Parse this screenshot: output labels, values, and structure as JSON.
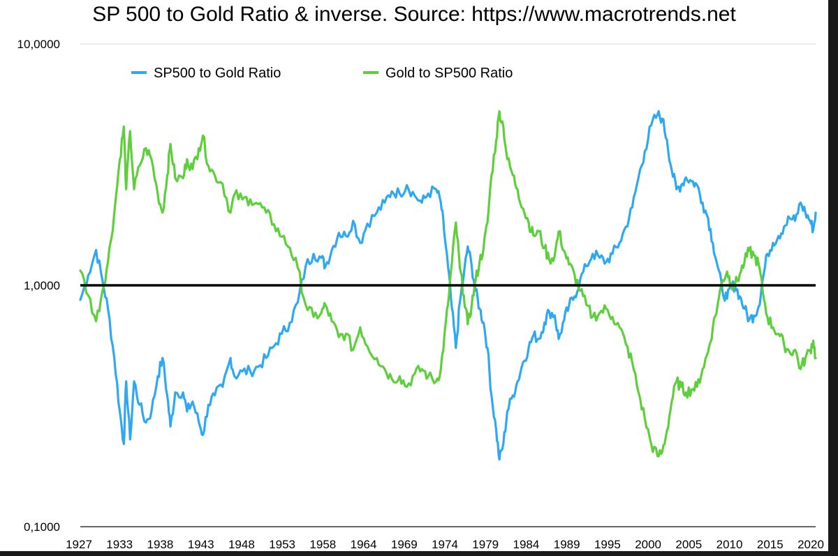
{
  "chart_data": {
    "type": "line",
    "title": "SP 500 to Gold Ratio & inverse. Source: https://www.macrotrends.net",
    "xlabel": "",
    "ylabel": "",
    "y_scale": "log",
    "ylim": [
      0.1,
      10
    ],
    "xlim": [
      1927,
      2020
    ],
    "y_ticks": [
      {
        "value": 10,
        "label": "10,0000"
      },
      {
        "value": 1,
        "label": "1,0000"
      },
      {
        "value": 0.1,
        "label": "0,1000"
      }
    ],
    "x_ticks": [
      "1927",
      "1933",
      "1938",
      "1943",
      "1948",
      "1953",
      "1958",
      "1964",
      "1969",
      "1974",
      "1979",
      "1984",
      "1989",
      "1995",
      "2000",
      "2005",
      "2010",
      "2015",
      "2020"
    ],
    "grid": "horizontal",
    "legend_position": "top",
    "reference_line": {
      "value": 1,
      "color": "#000000"
    },
    "series": [
      {
        "name": "SP500 to Gold Ratio",
        "color": "#2ea8f0",
        "points": [
          [
            1927.0,
            0.87
          ],
          [
            1928.0,
            1.1
          ],
          [
            1929.0,
            1.4
          ],
          [
            1929.8,
            1.05
          ],
          [
            1930.5,
            0.8
          ],
          [
            1931.3,
            0.5
          ],
          [
            1932.0,
            0.3
          ],
          [
            1932.5,
            0.22
          ],
          [
            1932.8,
            0.4
          ],
          [
            1933.3,
            0.23
          ],
          [
            1933.8,
            0.4
          ],
          [
            1934.5,
            0.32
          ],
          [
            1935.3,
            0.27
          ],
          [
            1936.0,
            0.3
          ],
          [
            1936.8,
            0.42
          ],
          [
            1937.4,
            0.5
          ],
          [
            1938.0,
            0.35
          ],
          [
            1938.4,
            0.26
          ],
          [
            1939.0,
            0.36
          ],
          [
            1940.0,
            0.36
          ],
          [
            1940.5,
            0.3
          ],
          [
            1941.2,
            0.33
          ],
          [
            1942.0,
            0.27
          ],
          [
            1942.5,
            0.24
          ],
          [
            1943.2,
            0.32
          ],
          [
            1944.0,
            0.35
          ],
          [
            1945.0,
            0.38
          ],
          [
            1946.0,
            0.5
          ],
          [
            1946.5,
            0.42
          ],
          [
            1947.5,
            0.44
          ],
          [
            1948.5,
            0.44
          ],
          [
            1949.5,
            0.46
          ],
          [
            1950.5,
            0.5
          ],
          [
            1951.5,
            0.56
          ],
          [
            1952.5,
            0.63
          ],
          [
            1953.5,
            0.7
          ],
          [
            1954.5,
            0.85
          ],
          [
            1955.5,
            1.2
          ],
          [
            1956.5,
            1.35
          ],
          [
            1957.5,
            1.3
          ],
          [
            1958.0,
            1.2
          ],
          [
            1958.8,
            1.4
          ],
          [
            1959.7,
            1.65
          ],
          [
            1960.6,
            1.6
          ],
          [
            1961.5,
            1.85
          ],
          [
            1962.4,
            1.5
          ],
          [
            1963.3,
            1.8
          ],
          [
            1964.5,
            2.0
          ],
          [
            1965.5,
            2.2
          ],
          [
            1966.4,
            2.45
          ],
          [
            1967.4,
            2.4
          ],
          [
            1968.3,
            2.6
          ],
          [
            1969.3,
            2.35
          ],
          [
            1970.2,
            2.2
          ],
          [
            1971.0,
            2.4
          ],
          [
            1972.0,
            2.5
          ],
          [
            1972.6,
            2.2
          ],
          [
            1973.0,
            1.7
          ],
          [
            1973.5,
            1.2
          ],
          [
            1974.0,
            0.8
          ],
          [
            1974.5,
            0.55
          ],
          [
            1975.0,
            0.85
          ],
          [
            1975.5,
            1.1
          ],
          [
            1976.0,
            1.45
          ],
          [
            1976.5,
            1.2
          ],
          [
            1977.0,
            0.95
          ],
          [
            1977.5,
            0.8
          ],
          [
            1978.0,
            0.7
          ],
          [
            1978.5,
            0.55
          ],
          [
            1979.0,
            0.35
          ],
          [
            1979.6,
            0.25
          ],
          [
            1980.0,
            0.19
          ],
          [
            1980.5,
            0.22
          ],
          [
            1981.0,
            0.3
          ],
          [
            1981.7,
            0.35
          ],
          [
            1982.3,
            0.4
          ],
          [
            1983.0,
            0.48
          ],
          [
            1983.7,
            0.55
          ],
          [
            1984.3,
            0.62
          ],
          [
            1985.0,
            0.6
          ],
          [
            1985.7,
            0.7
          ],
          [
            1986.3,
            0.78
          ],
          [
            1987.0,
            0.75
          ],
          [
            1987.5,
            0.6
          ],
          [
            1988.2,
            0.72
          ],
          [
            1988.8,
            0.82
          ],
          [
            1989.5,
            0.9
          ],
          [
            1990.2,
            1.05
          ],
          [
            1991.0,
            1.2
          ],
          [
            1991.8,
            1.35
          ],
          [
            1992.7,
            1.3
          ],
          [
            1993.5,
            1.25
          ],
          [
            1994.3,
            1.35
          ],
          [
            1995.2,
            1.5
          ],
          [
            1996.0,
            1.75
          ],
          [
            1996.8,
            2.1
          ],
          [
            1997.6,
            2.8
          ],
          [
            1998.4,
            3.6
          ],
          [
            1999.2,
            4.6
          ],
          [
            2000.0,
            5.1
          ],
          [
            2000.6,
            4.9
          ],
          [
            2001.2,
            4.0
          ],
          [
            2001.8,
            3.0
          ],
          [
            2002.4,
            2.5
          ],
          [
            2003.0,
            2.6
          ],
          [
            2003.6,
            2.8
          ],
          [
            2004.3,
            2.7
          ],
          [
            2005.0,
            2.6
          ],
          [
            2005.7,
            2.2
          ],
          [
            2006.4,
            1.9
          ],
          [
            2007.0,
            1.5
          ],
          [
            2007.6,
            1.2
          ],
          [
            2008.2,
            0.95
          ],
          [
            2008.8,
            0.88
          ],
          [
            2009.3,
            0.98
          ],
          [
            2009.8,
            1.0
          ],
          [
            2010.4,
            0.9
          ],
          [
            2011.0,
            0.8
          ],
          [
            2011.6,
            0.72
          ],
          [
            2012.2,
            0.75
          ],
          [
            2012.8,
            0.82
          ],
          [
            2013.3,
            1.05
          ],
          [
            2013.9,
            1.35
          ],
          [
            2014.6,
            1.5
          ],
          [
            2015.3,
            1.6
          ],
          [
            2016.0,
            1.75
          ],
          [
            2016.7,
            1.9
          ],
          [
            2017.4,
            1.85
          ],
          [
            2018.1,
            2.2
          ],
          [
            2018.7,
            2.0
          ],
          [
            2019.3,
            1.85
          ],
          [
            2019.7,
            1.7
          ],
          [
            2020.0,
            2.0
          ]
        ]
      },
      {
        "name": "Gold to SP500 Ratio",
        "color": "#5ccf3a",
        "points": [
          [
            1927.0,
            1.15
          ],
          [
            1928.0,
            0.91
          ],
          [
            1929.0,
            0.71
          ],
          [
            1929.8,
            0.95
          ],
          [
            1930.5,
            1.25
          ],
          [
            1931.3,
            2.0
          ],
          [
            1932.0,
            3.33
          ],
          [
            1932.5,
            4.55
          ],
          [
            1932.8,
            2.5
          ],
          [
            1933.3,
            4.35
          ],
          [
            1933.8,
            2.5
          ],
          [
            1934.5,
            3.13
          ],
          [
            1935.3,
            3.7
          ],
          [
            1936.0,
            3.33
          ],
          [
            1936.8,
            2.38
          ],
          [
            1937.4,
            2.0
          ],
          [
            1938.0,
            2.86
          ],
          [
            1938.4,
            3.85
          ],
          [
            1939.0,
            2.78
          ],
          [
            1940.0,
            2.78
          ],
          [
            1940.5,
            3.33
          ],
          [
            1941.2,
            3.03
          ],
          [
            1942.0,
            3.7
          ],
          [
            1942.5,
            4.17
          ],
          [
            1943.2,
            3.13
          ],
          [
            1944.0,
            2.86
          ],
          [
            1945.0,
            2.63
          ],
          [
            1946.0,
            2.0
          ],
          [
            1946.5,
            2.38
          ],
          [
            1947.5,
            2.27
          ],
          [
            1948.5,
            2.27
          ],
          [
            1949.5,
            2.17
          ],
          [
            1950.5,
            2.0
          ],
          [
            1951.5,
            1.79
          ],
          [
            1952.5,
            1.59
          ],
          [
            1953.5,
            1.43
          ],
          [
            1954.5,
            1.18
          ],
          [
            1955.5,
            0.83
          ],
          [
            1956.5,
            0.74
          ],
          [
            1957.5,
            0.77
          ],
          [
            1958.0,
            0.83
          ],
          [
            1958.8,
            0.71
          ],
          [
            1959.7,
            0.61
          ],
          [
            1960.6,
            0.63
          ],
          [
            1961.5,
            0.54
          ],
          [
            1962.4,
            0.67
          ],
          [
            1963.3,
            0.56
          ],
          [
            1964.5,
            0.5
          ],
          [
            1965.5,
            0.45
          ],
          [
            1966.4,
            0.41
          ],
          [
            1967.4,
            0.42
          ],
          [
            1968.3,
            0.38
          ],
          [
            1969.3,
            0.43
          ],
          [
            1970.2,
            0.45
          ],
          [
            1971.0,
            0.42
          ],
          [
            1972.0,
            0.4
          ],
          [
            1972.6,
            0.45
          ],
          [
            1973.0,
            0.59
          ],
          [
            1973.5,
            0.83
          ],
          [
            1974.0,
            1.25
          ],
          [
            1974.5,
            1.82
          ],
          [
            1975.0,
            1.18
          ],
          [
            1975.5,
            0.91
          ],
          [
            1976.0,
            0.69
          ],
          [
            1976.5,
            0.83
          ],
          [
            1977.0,
            1.05
          ],
          [
            1977.5,
            1.25
          ],
          [
            1978.0,
            1.43
          ],
          [
            1978.5,
            1.82
          ],
          [
            1979.0,
            2.86
          ],
          [
            1979.6,
            4.0
          ],
          [
            1980.0,
            5.26
          ],
          [
            1980.5,
            4.55
          ],
          [
            1981.0,
            3.33
          ],
          [
            1981.7,
            2.86
          ],
          [
            1982.3,
            2.5
          ],
          [
            1983.0,
            2.08
          ],
          [
            1983.7,
            1.82
          ],
          [
            1984.3,
            1.61
          ],
          [
            1985.0,
            1.67
          ],
          [
            1985.7,
            1.43
          ],
          [
            1986.3,
            1.28
          ],
          [
            1987.0,
            1.33
          ],
          [
            1987.5,
            1.67
          ],
          [
            1988.2,
            1.39
          ],
          [
            1988.8,
            1.22
          ],
          [
            1989.5,
            1.11
          ],
          [
            1990.2,
            0.95
          ],
          [
            1991.0,
            0.83
          ],
          [
            1991.8,
            0.74
          ],
          [
            1992.7,
            0.77
          ],
          [
            1993.5,
            0.8
          ],
          [
            1994.3,
            0.74
          ],
          [
            1995.2,
            0.67
          ],
          [
            1996.0,
            0.57
          ],
          [
            1996.8,
            0.48
          ],
          [
            1997.6,
            0.36
          ],
          [
            1998.4,
            0.28
          ],
          [
            1999.2,
            0.22
          ],
          [
            2000.0,
            0.196
          ],
          [
            2000.6,
            0.204
          ],
          [
            2001.2,
            0.25
          ],
          [
            2001.8,
            0.33
          ],
          [
            2002.4,
            0.4
          ],
          [
            2003.0,
            0.38
          ],
          [
            2003.6,
            0.36
          ],
          [
            2004.3,
            0.37
          ],
          [
            2005.0,
            0.38
          ],
          [
            2005.7,
            0.45
          ],
          [
            2006.4,
            0.53
          ],
          [
            2007.0,
            0.67
          ],
          [
            2007.6,
            0.83
          ],
          [
            2008.2,
            1.05
          ],
          [
            2008.8,
            1.14
          ],
          [
            2009.3,
            1.02
          ],
          [
            2009.8,
            1.0
          ],
          [
            2010.4,
            1.11
          ],
          [
            2011.0,
            1.25
          ],
          [
            2011.6,
            1.39
          ],
          [
            2012.2,
            1.33
          ],
          [
            2012.8,
            1.22
          ],
          [
            2013.3,
            0.95
          ],
          [
            2013.9,
            0.74
          ],
          [
            2014.6,
            0.67
          ],
          [
            2015.3,
            0.63
          ],
          [
            2016.0,
            0.57
          ],
          [
            2016.7,
            0.53
          ],
          [
            2017.4,
            0.54
          ],
          [
            2018.1,
            0.45
          ],
          [
            2018.7,
            0.5
          ],
          [
            2019.3,
            0.54
          ],
          [
            2019.7,
            0.59
          ],
          [
            2020.0,
            0.5
          ]
        ]
      }
    ]
  }
}
